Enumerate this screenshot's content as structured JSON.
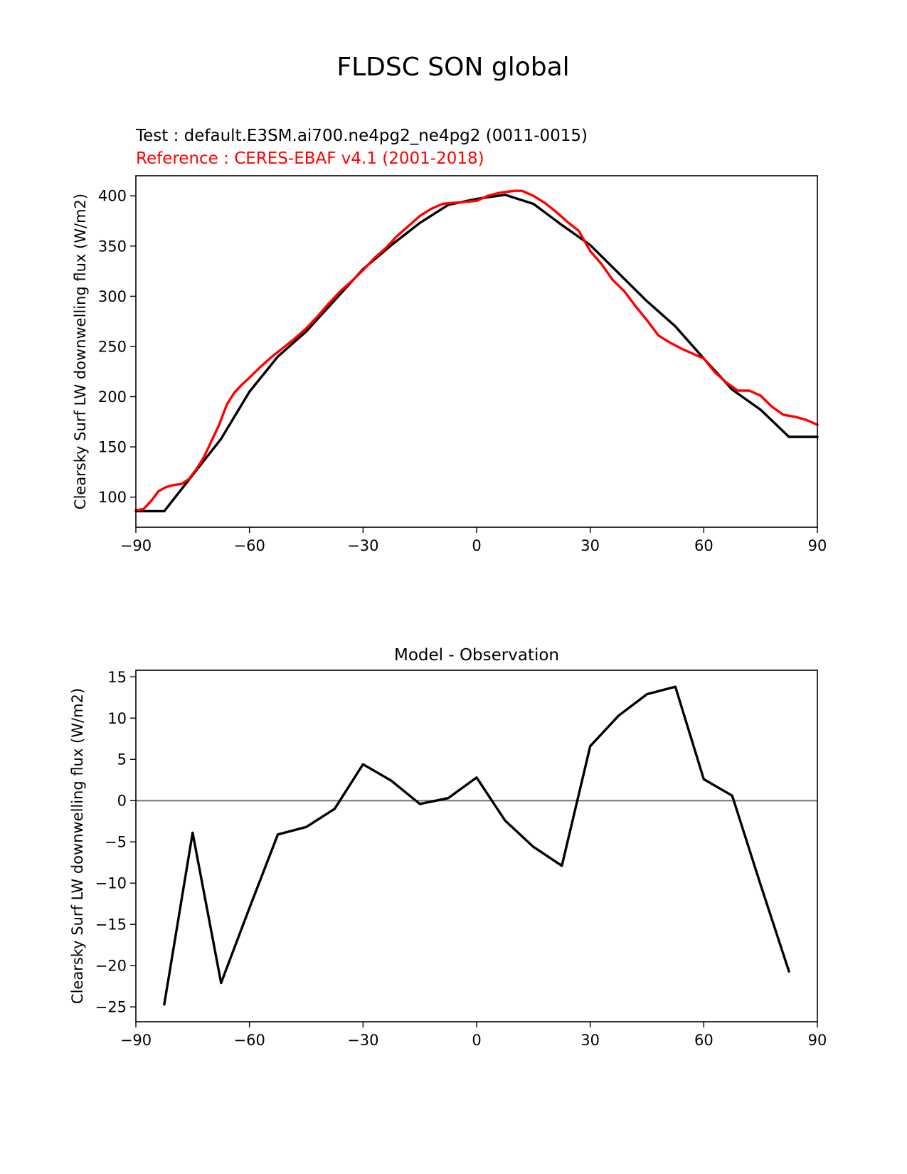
{
  "figure": {
    "title": "FLDSC SON global"
  },
  "chart_data": [
    {
      "type": "line",
      "test_label": "Test : default.E3SM.ai700.ne4pg2_ne4pg2 (0011-0015)",
      "reference_label": "Reference : CERES-EBAF v4.1 (2001-2018)",
      "title": "",
      "xlabel": "",
      "ylabel": "Clearsky Surf LW downwelling flux (W/m2)",
      "xlim": [
        -90,
        90
      ],
      "ylim": [
        70,
        420
      ],
      "xticks": [
        -90,
        -60,
        -30,
        0,
        30,
        60,
        90
      ],
      "yticks": [
        100,
        150,
        200,
        250,
        300,
        350,
        400
      ],
      "grid": false,
      "series": [
        {
          "color": "#000000",
          "x": [
            -90,
            -82.5,
            -75,
            -67.5,
            -60,
            -52.5,
            -45,
            -37.5,
            -30,
            -22.5,
            -15,
            -7.5,
            0,
            7.5,
            15,
            22.5,
            30,
            37.5,
            45,
            52.5,
            60,
            67.5,
            75,
            82.5,
            90
          ],
          "y": [
            86,
            86,
            122,
            158,
            205,
            240,
            265,
            296,
            327,
            351,
            373,
            391,
            397,
            401,
            392,
            371,
            351,
            323,
            295,
            270,
            238,
            207,
            187,
            160,
            160
          ]
        },
        {
          "color": "#ff0000",
          "x": [
            -90,
            -88,
            -86,
            -84,
            -82,
            -80,
            -78,
            -76,
            -74,
            -72,
            -70,
            -68,
            -66,
            -64,
            -62,
            -60,
            -57,
            -54,
            -51,
            -48,
            -45,
            -42,
            -39,
            -36,
            -33,
            -30,
            -27,
            -24,
            -21,
            -18,
            -15,
            -12,
            -9,
            -6,
            -3,
            0,
            3,
            6,
            8,
            10,
            12,
            15,
            18,
            21,
            24,
            27,
            30,
            33,
            36,
            39,
            42,
            45,
            48,
            51,
            54,
            57,
            60,
            63,
            66,
            69,
            72,
            75,
            78,
            81,
            84,
            87,
            90
          ],
          "y": [
            87,
            88,
            96,
            106,
            110,
            112,
            113,
            118,
            128,
            140,
            156,
            172,
            192,
            204,
            212,
            219,
            230,
            240,
            249,
            258,
            268,
            280,
            293,
            305,
            315,
            326,
            338,
            348,
            360,
            370,
            380,
            387,
            392,
            393,
            394,
            395,
            400,
            403,
            404,
            405,
            405,
            400,
            393,
            384,
            374,
            365,
            345,
            332,
            316,
            305,
            290,
            276,
            261,
            254,
            248,
            243,
            238,
            224,
            214,
            206,
            206,
            201,
            190,
            182,
            180,
            177,
            172
          ]
        }
      ]
    },
    {
      "type": "line",
      "title": "Model - Observation",
      "xlabel": "",
      "ylabel": "Clearsky Surf LW downwelling flux (W/m2)",
      "xlim": [
        -90,
        90
      ],
      "ylim": [
        -26.8,
        15.8
      ],
      "xticks": [
        -90,
        -60,
        -30,
        0,
        30,
        60,
        90
      ],
      "yticks": [
        -25,
        -20,
        -15,
        -10,
        -5,
        0,
        5,
        10,
        15
      ],
      "grid": false,
      "zero_line_color": "#808080",
      "series": [
        {
          "color": "#000000",
          "x": [
            -82.5,
            -75,
            -67.5,
            -60,
            -52.5,
            -45,
            -37.5,
            -30,
            -22.5,
            -15,
            -7.5,
            0,
            7.5,
            15,
            22.5,
            30,
            37.5,
            45,
            52.5,
            60,
            67.5,
            75,
            82.5
          ],
          "y": [
            -24.7,
            -3.9,
            -22.1,
            -13.0,
            -4.1,
            -3.2,
            -1.0,
            4.4,
            2.4,
            -0.4,
            0.3,
            2.8,
            -2.4,
            -5.6,
            -7.9,
            6.6,
            10.3,
            12.9,
            13.8,
            2.6,
            0.6,
            -10.2,
            -20.7
          ]
        }
      ]
    }
  ]
}
